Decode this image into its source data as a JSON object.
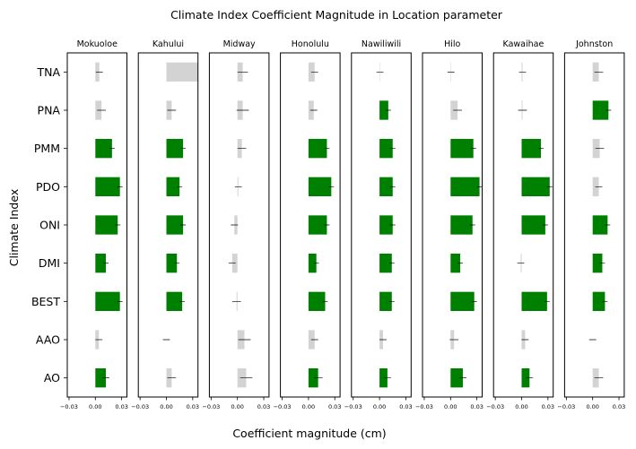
{
  "chart_data": {
    "type": "bar",
    "orientation": "horizontal",
    "title": "Climate Index Coefficient Magnitude in Location parameter",
    "xlabel": "Coefficient magnitude (cm)",
    "ylabel": "Climate Index",
    "categories": [
      "TNA",
      "PNA",
      "PMM",
      "PDO",
      "ONI",
      "DMI",
      "BEST",
      "AAO",
      "AO"
    ],
    "xlim": [
      -0.032,
      0.036
    ],
    "xticks": [
      -0.03,
      0.0,
      0.03
    ],
    "xtick_labels": [
      "−0.03",
      "0.00",
      "0.03"
    ],
    "colors": {
      "significant": "#008000",
      "not_significant": "#d3d3d3",
      "error_bar": "#000000"
    },
    "panels": [
      {
        "name": "Mokuoloe",
        "values": [
          0.0045,
          0.007,
          0.019,
          0.028,
          0.0255,
          0.012,
          0.028,
          0.004,
          0.012
        ],
        "errors": [
          0.004,
          0.005,
          0.003,
          0.003,
          0.003,
          0.003,
          0.003,
          0.004,
          0.004
        ],
        "significant": [
          false,
          false,
          true,
          true,
          true,
          true,
          true,
          false,
          true
        ]
      },
      {
        "name": "Kahului",
        "values": [
          0.036,
          0.006,
          0.019,
          0.015,
          0.019,
          0.012,
          0.018,
          0.0,
          0.006
        ],
        "errors": [
          0.0,
          0.005,
          0.003,
          0.003,
          0.003,
          0.003,
          0.003,
          0.004,
          0.005
        ],
        "significant": [
          false,
          false,
          true,
          true,
          true,
          true,
          true,
          false,
          false
        ]
      },
      {
        "name": "Midway",
        "values": [
          0.006,
          0.006,
          0.005,
          0.001,
          -0.0035,
          -0.006,
          -0.001,
          0.008,
          0.01
        ],
        "errors": [
          0.006,
          0.007,
          0.005,
          0.004,
          0.004,
          0.004,
          0.005,
          0.007,
          0.007
        ],
        "significant": [
          false,
          false,
          false,
          false,
          false,
          false,
          false,
          false,
          false
        ]
      },
      {
        "name": "Honolulu",
        "values": [
          0.007,
          0.006,
          0.021,
          0.026,
          0.021,
          0.009,
          0.019,
          0.007,
          0.011
        ],
        "errors": [
          0.004,
          0.004,
          0.003,
          0.003,
          0.003,
          0.003,
          0.003,
          0.004,
          0.005
        ],
        "significant": [
          false,
          false,
          true,
          true,
          true,
          true,
          true,
          false,
          true
        ]
      },
      {
        "name": "Nawiliwili",
        "values": [
          0.0005,
          0.01,
          0.015,
          0.015,
          0.015,
          0.014,
          0.014,
          0.004,
          0.009
        ],
        "errors": [
          0.004,
          0.003,
          0.003,
          0.003,
          0.003,
          0.003,
          0.003,
          0.004,
          0.004
        ],
        "significant": [
          false,
          true,
          true,
          true,
          true,
          true,
          true,
          false,
          true
        ]
      },
      {
        "name": "Hilo",
        "values": [
          0.0005,
          0.008,
          0.026,
          0.033,
          0.025,
          0.011,
          0.027,
          0.004,
          0.014
        ],
        "errors": [
          0.004,
          0.005,
          0.003,
          0.003,
          0.003,
          0.003,
          0.003,
          0.005,
          0.004
        ],
        "significant": [
          false,
          false,
          true,
          true,
          true,
          true,
          true,
          false,
          true
        ]
      },
      {
        "name": "Kawaihae",
        "values": [
          0.001,
          0.001,
          0.022,
          0.032,
          0.027,
          -0.001,
          0.029,
          0.004,
          0.009
        ],
        "errors": [
          0.004,
          0.005,
          0.003,
          0.003,
          0.003,
          0.004,
          0.003,
          0.004,
          0.004
        ],
        "significant": [
          false,
          false,
          true,
          true,
          true,
          false,
          true,
          false,
          true
        ]
      },
      {
        "name": "Johnston",
        "values": [
          0.007,
          0.018,
          0.008,
          0.007,
          0.017,
          0.011,
          0.014,
          0.0,
          0.007
        ],
        "errors": [
          0.005,
          0.003,
          0.005,
          0.004,
          0.003,
          0.003,
          0.003,
          0.004,
          0.005
        ],
        "significant": [
          false,
          true,
          false,
          false,
          true,
          true,
          true,
          false,
          false
        ]
      }
    ]
  }
}
